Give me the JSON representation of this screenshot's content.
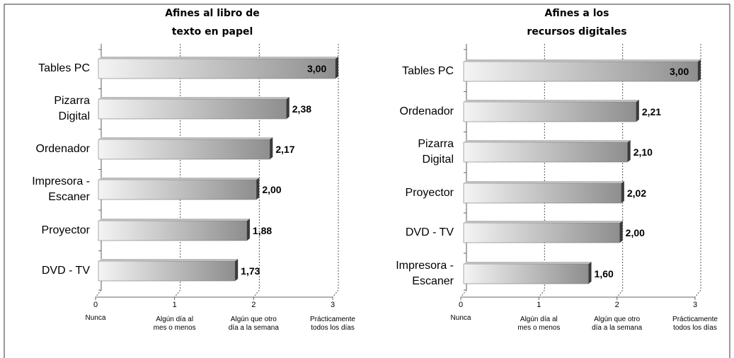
{
  "chart_data": [
    {
      "type": "bar",
      "orientation": "horizontal",
      "title": "Afines al libro de\ntexto en papel",
      "categories": [
        "Tables PC",
        "Pizarra\nDigital",
        "Ordenador",
        "Impresora -\nEscaner",
        "Proyector",
        "DVD - TV"
      ],
      "values": [
        3.0,
        2.38,
        2.17,
        2.0,
        1.88,
        1.73
      ],
      "value_labels": [
        "3,00",
        "2,38",
        "2,17",
        "2,00",
        "1,88",
        "1,73"
      ],
      "xlim": [
        0,
        3
      ],
      "xticks": [
        0,
        1,
        2,
        3
      ],
      "xtick_descriptions": [
        "Nunca",
        "Algún día al\nmes o menos",
        "Algún que otro\ndía a la semana",
        "Prácticamente\ntodos los días"
      ],
      "grid": true
    },
    {
      "type": "bar",
      "orientation": "horizontal",
      "title": "Afines a los\nrecursos digitales",
      "categories": [
        "Tables PC",
        "Ordenador",
        "Pizarra\nDigital",
        "Proyector",
        "DVD - TV",
        "Impresora -\nEscaner"
      ],
      "values": [
        3.0,
        2.21,
        2.1,
        2.02,
        2.0,
        1.6
      ],
      "value_labels": [
        "3,00",
        "2,21",
        "2,10",
        "2,02",
        "2,00",
        "1,60"
      ],
      "xlim": [
        0,
        3
      ],
      "xticks": [
        0,
        1,
        2,
        3
      ],
      "xtick_descriptions": [
        "Nunca",
        "Algún día al\nmes o menos",
        "Algún que otro\ndía a la semana",
        "Prácticamente\ntodos los días"
      ],
      "grid": true
    }
  ]
}
